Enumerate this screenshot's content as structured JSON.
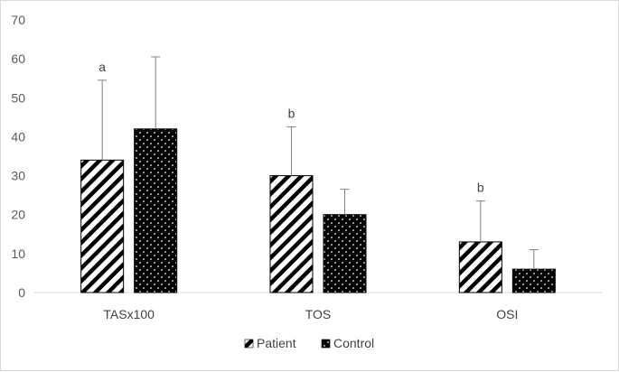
{
  "chart_data": {
    "type": "bar",
    "categories": [
      "TASx100",
      "TOS",
      "OSI"
    ],
    "series": [
      {
        "name": "Patient",
        "values": [
          34,
          30,
          13
        ],
        "error": [
          20.5,
          12.5,
          10.5
        ],
        "pattern": "diagonal-stripes"
      },
      {
        "name": "Control",
        "values": [
          42,
          20,
          6
        ],
        "error": [
          18.5,
          6.5,
          5
        ],
        "pattern": "dotted-black"
      }
    ],
    "annotations": [
      {
        "category": "TASx100",
        "series": "Patient",
        "text": "a"
      },
      {
        "category": "TOS",
        "series": "Patient",
        "text": "b"
      },
      {
        "category": "OSI",
        "series": "Patient",
        "text": "b"
      }
    ],
    "yticks": [
      "0",
      "10",
      "20",
      "30",
      "40",
      "50",
      "60",
      "70"
    ],
    "ylim": [
      0,
      70
    ],
    "grid": false,
    "legend": "bottom",
    "colors": {
      "bar_fill": "#000000",
      "dot": "#ffffff",
      "axis": "#d9d9d9",
      "errorbar": "#808080"
    }
  }
}
